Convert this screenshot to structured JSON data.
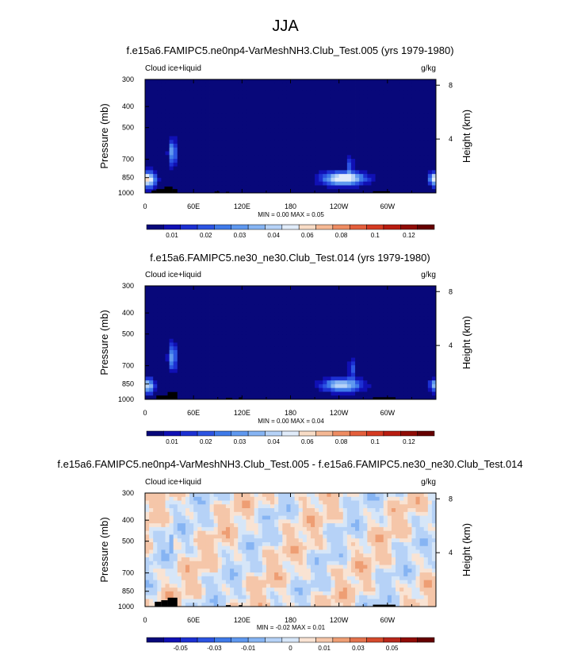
{
  "page": {
    "title": "JJA"
  },
  "chart_data": [
    {
      "type": "heatmap",
      "title": "f.e15a6.FAMIPC5.ne0np4-VarMeshNH3.Club_Test.005 (yrs 1979-1980)",
      "left_label": "Cloud ice+liquid",
      "right_label": "g/kg",
      "ylabel": "Pressure (mb)",
      "ylabel_right": "Height (km)",
      "x_ticks": [
        "0",
        "60E",
        "120E",
        "180",
        "120W",
        "60W"
      ],
      "x_tick_values": [
        0,
        60,
        120,
        180,
        240,
        300
      ],
      "xlim": [
        0,
        360
      ],
      "y_ticks": [
        "300",
        "400",
        "500",
        "700",
        "850",
        "1000"
      ],
      "y_tick_values": [
        300,
        400,
        500,
        700,
        850,
        1000
      ],
      "ylim": [
        1000,
        300
      ],
      "y_scale": "log",
      "right_ticks": [
        "8",
        "4"
      ],
      "right_tick_values": [
        8,
        4
      ],
      "stats": "MIN =   0.00  MAX =   0.05",
      "colorbar_labels": [
        "0.01",
        "0.02",
        "0.03",
        "0.04",
        "0.06",
        "0.08",
        "0.1",
        "0.12"
      ],
      "blobs": [
        {
          "lon": 5,
          "p": 870,
          "amp": 0.045,
          "wx": 6,
          "wy": 0.06
        },
        {
          "lon": 34,
          "p": 650,
          "amp": 0.03,
          "wx": 3.5,
          "wy": 0.1
        },
        {
          "lon": 246,
          "p": 860,
          "amp": 0.05,
          "wx": 18,
          "wy": 0.05
        },
        {
          "lon": 254,
          "p": 740,
          "amp": 0.02,
          "wx": 2.5,
          "wy": 0.07
        },
        {
          "lon": 357,
          "p": 860,
          "amp": 0.03,
          "wx": 4,
          "wy": 0.04
        }
      ],
      "terrain": [
        {
          "lon0": 8,
          "lon1": 14,
          "p": 975
        },
        {
          "lon0": 14,
          "lon1": 24,
          "p": 960
        },
        {
          "lon0": 24,
          "lon1": 34,
          "p": 935
        },
        {
          "lon0": 34,
          "lon1": 40,
          "p": 960
        },
        {
          "lon0": 86,
          "lon1": 92,
          "p": 985
        },
        {
          "lon0": 100,
          "lon1": 104,
          "p": 988
        },
        {
          "lon0": 282,
          "lon1": 303,
          "p": 982
        }
      ]
    },
    {
      "type": "heatmap",
      "title": "f.e15a6.FAMIPC5.ne30_ne30.Club_Test.014 (yrs 1979-1980)",
      "left_label": "Cloud ice+liquid",
      "right_label": "g/kg",
      "ylabel": "Pressure (mb)",
      "ylabel_right": "Height (km)",
      "x_ticks": [
        "0",
        "60E",
        "120E",
        "180",
        "120W",
        "60W"
      ],
      "x_tick_values": [
        0,
        60,
        120,
        180,
        240,
        300
      ],
      "xlim": [
        0,
        360
      ],
      "y_ticks": [
        "300",
        "400",
        "500",
        "700",
        "850",
        "1000"
      ],
      "y_tick_values": [
        300,
        400,
        500,
        700,
        850,
        1000
      ],
      "ylim": [
        1000,
        300
      ],
      "y_scale": "log",
      "right_ticks": [
        "8",
        "4"
      ],
      "right_tick_values": [
        8,
        4
      ],
      "stats": "MIN =   0.00  MAX =   0.04",
      "colorbar_labels": [
        "0.01",
        "0.02",
        "0.03",
        "0.04",
        "0.06",
        "0.08",
        "0.1",
        "0.12"
      ],
      "blobs": [
        {
          "lon": 5,
          "p": 870,
          "amp": 0.035,
          "wx": 5,
          "wy": 0.06
        },
        {
          "lon": 34,
          "p": 640,
          "amp": 0.03,
          "wx": 3.5,
          "wy": 0.1
        },
        {
          "lon": 244,
          "p": 860,
          "amp": 0.04,
          "wx": 17,
          "wy": 0.05
        },
        {
          "lon": 256,
          "p": 720,
          "amp": 0.02,
          "wx": 2.5,
          "wy": 0.07
        },
        {
          "lon": 357,
          "p": 860,
          "amp": 0.025,
          "wx": 4,
          "wy": 0.04
        }
      ],
      "terrain": [
        {
          "lon0": 14,
          "lon1": 28,
          "p": 960
        },
        {
          "lon0": 28,
          "lon1": 40,
          "p": 925
        },
        {
          "lon0": 100,
          "lon1": 108,
          "p": 985
        },
        {
          "lon0": 116,
          "lon1": 120,
          "p": 980
        },
        {
          "lon0": 282,
          "lon1": 310,
          "p": 978
        }
      ]
    },
    {
      "type": "heatmap",
      "title": "f.e15a6.FAMIPC5.ne0np4-VarMeshNH3.Club_Test.005 - f.e15a6.FAMIPC5.ne30_ne30.Club_Test.014",
      "left_label": "Cloud ice+liquid",
      "right_label": "g/kg",
      "ylabel": "Pressure (mb)",
      "ylabel_right": "Height (km)",
      "x_ticks": [
        "0",
        "60E",
        "120E",
        "180",
        "120W",
        "60W"
      ],
      "x_tick_values": [
        0,
        60,
        120,
        180,
        240,
        300
      ],
      "xlim": [
        0,
        360
      ],
      "y_ticks": [
        "300",
        "400",
        "500",
        "700",
        "850",
        "1000"
      ],
      "y_tick_values": [
        300,
        400,
        500,
        700,
        850,
        1000
      ],
      "ylim": [
        1000,
        300
      ],
      "y_scale": "log",
      "right_ticks": [
        "8",
        "4"
      ],
      "right_tick_values": [
        8,
        4
      ],
      "stats": "MIN =  -0.02  MAX =   0.01",
      "colorbar_labels": [
        "-0.05",
        "-0.03",
        "-0.01",
        "0",
        "0.01",
        "0.03",
        "0.05"
      ],
      "terrain": [
        {
          "lon0": 12,
          "lon1": 20,
          "p": 950
        },
        {
          "lon0": 20,
          "lon1": 28,
          "p": 935
        },
        {
          "lon0": 28,
          "lon1": 40,
          "p": 910
        },
        {
          "lon0": 100,
          "lon1": 106,
          "p": 985
        },
        {
          "lon0": 116,
          "lon1": 120,
          "p": 985
        },
        {
          "lon0": 282,
          "lon1": 310,
          "p": 980
        }
      ]
    }
  ],
  "colors": {
    "full": [
      "#08087a",
      "#1010b4",
      "#1c30d2",
      "#2c54e2",
      "#3f7ae9",
      "#5f98ef",
      "#86b4f3",
      "#b6d2f7",
      "#e1ecfa",
      "#f8dcc6",
      "#f5b894",
      "#ee8c62",
      "#e45f3c",
      "#d53a22",
      "#b81c10",
      "#900c06",
      "#660000"
    ],
    "diff": [
      "#08087a",
      "#1010b4",
      "#1c30d2",
      "#2c54e2",
      "#3f7ae9",
      "#5f98ef",
      "#86b4f3",
      "#b6d2f7",
      "#d6e6f8",
      "#f9e3d3",
      "#f5c6a9",
      "#ee9e74",
      "#e4734d",
      "#d54a2c",
      "#b8261a",
      "#900c06",
      "#660000"
    ]
  }
}
